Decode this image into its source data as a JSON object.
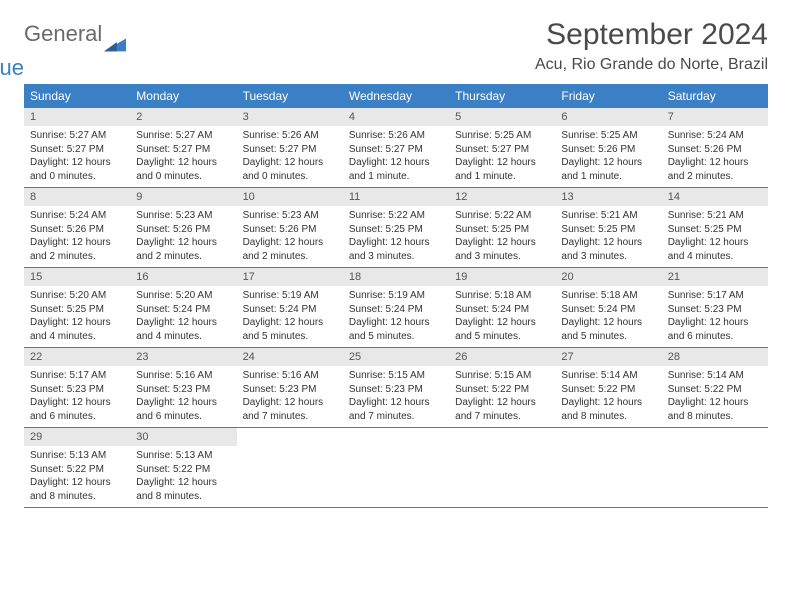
{
  "brand": {
    "word1": "General",
    "word2": "Blue"
  },
  "colors": {
    "header_bg": "#3b7fc4",
    "daynum_bg": "#e8e8e8",
    "rule": "#3b7fc4"
  },
  "month_title": "September 2024",
  "location": "Acu, Rio Grande do Norte, Brazil",
  "weekdays": [
    "Sunday",
    "Monday",
    "Tuesday",
    "Wednesday",
    "Thursday",
    "Friday",
    "Saturday"
  ],
  "weeks": [
    [
      {
        "n": "1",
        "sunrise": "5:27 AM",
        "sunset": "5:27 PM",
        "daylight": "12 hours and 0 minutes."
      },
      {
        "n": "2",
        "sunrise": "5:27 AM",
        "sunset": "5:27 PM",
        "daylight": "12 hours and 0 minutes."
      },
      {
        "n": "3",
        "sunrise": "5:26 AM",
        "sunset": "5:27 PM",
        "daylight": "12 hours and 0 minutes."
      },
      {
        "n": "4",
        "sunrise": "5:26 AM",
        "sunset": "5:27 PM",
        "daylight": "12 hours and 1 minute."
      },
      {
        "n": "5",
        "sunrise": "5:25 AM",
        "sunset": "5:27 PM",
        "daylight": "12 hours and 1 minute."
      },
      {
        "n": "6",
        "sunrise": "5:25 AM",
        "sunset": "5:26 PM",
        "daylight": "12 hours and 1 minute."
      },
      {
        "n": "7",
        "sunrise": "5:24 AM",
        "sunset": "5:26 PM",
        "daylight": "12 hours and 2 minutes."
      }
    ],
    [
      {
        "n": "8",
        "sunrise": "5:24 AM",
        "sunset": "5:26 PM",
        "daylight": "12 hours and 2 minutes."
      },
      {
        "n": "9",
        "sunrise": "5:23 AM",
        "sunset": "5:26 PM",
        "daylight": "12 hours and 2 minutes."
      },
      {
        "n": "10",
        "sunrise": "5:23 AM",
        "sunset": "5:26 PM",
        "daylight": "12 hours and 2 minutes."
      },
      {
        "n": "11",
        "sunrise": "5:22 AM",
        "sunset": "5:25 PM",
        "daylight": "12 hours and 3 minutes."
      },
      {
        "n": "12",
        "sunrise": "5:22 AM",
        "sunset": "5:25 PM",
        "daylight": "12 hours and 3 minutes."
      },
      {
        "n": "13",
        "sunrise": "5:21 AM",
        "sunset": "5:25 PM",
        "daylight": "12 hours and 3 minutes."
      },
      {
        "n": "14",
        "sunrise": "5:21 AM",
        "sunset": "5:25 PM",
        "daylight": "12 hours and 4 minutes."
      }
    ],
    [
      {
        "n": "15",
        "sunrise": "5:20 AM",
        "sunset": "5:25 PM",
        "daylight": "12 hours and 4 minutes."
      },
      {
        "n": "16",
        "sunrise": "5:20 AM",
        "sunset": "5:24 PM",
        "daylight": "12 hours and 4 minutes."
      },
      {
        "n": "17",
        "sunrise": "5:19 AM",
        "sunset": "5:24 PM",
        "daylight": "12 hours and 5 minutes."
      },
      {
        "n": "18",
        "sunrise": "5:19 AM",
        "sunset": "5:24 PM",
        "daylight": "12 hours and 5 minutes."
      },
      {
        "n": "19",
        "sunrise": "5:18 AM",
        "sunset": "5:24 PM",
        "daylight": "12 hours and 5 minutes."
      },
      {
        "n": "20",
        "sunrise": "5:18 AM",
        "sunset": "5:24 PM",
        "daylight": "12 hours and 5 minutes."
      },
      {
        "n": "21",
        "sunrise": "5:17 AM",
        "sunset": "5:23 PM",
        "daylight": "12 hours and 6 minutes."
      }
    ],
    [
      {
        "n": "22",
        "sunrise": "5:17 AM",
        "sunset": "5:23 PM",
        "daylight": "12 hours and 6 minutes."
      },
      {
        "n": "23",
        "sunrise": "5:16 AM",
        "sunset": "5:23 PM",
        "daylight": "12 hours and 6 minutes."
      },
      {
        "n": "24",
        "sunrise": "5:16 AM",
        "sunset": "5:23 PM",
        "daylight": "12 hours and 7 minutes."
      },
      {
        "n": "25",
        "sunrise": "5:15 AM",
        "sunset": "5:23 PM",
        "daylight": "12 hours and 7 minutes."
      },
      {
        "n": "26",
        "sunrise": "5:15 AM",
        "sunset": "5:22 PM",
        "daylight": "12 hours and 7 minutes."
      },
      {
        "n": "27",
        "sunrise": "5:14 AM",
        "sunset": "5:22 PM",
        "daylight": "12 hours and 8 minutes."
      },
      {
        "n": "28",
        "sunrise": "5:14 AM",
        "sunset": "5:22 PM",
        "daylight": "12 hours and 8 minutes."
      }
    ],
    [
      {
        "n": "29",
        "sunrise": "5:13 AM",
        "sunset": "5:22 PM",
        "daylight": "12 hours and 8 minutes."
      },
      {
        "n": "30",
        "sunrise": "5:13 AM",
        "sunset": "5:22 PM",
        "daylight": "12 hours and 8 minutes."
      },
      null,
      null,
      null,
      null,
      null
    ]
  ],
  "labels": {
    "sunrise": "Sunrise: ",
    "sunset": "Sunset: ",
    "daylight": "Daylight: "
  }
}
